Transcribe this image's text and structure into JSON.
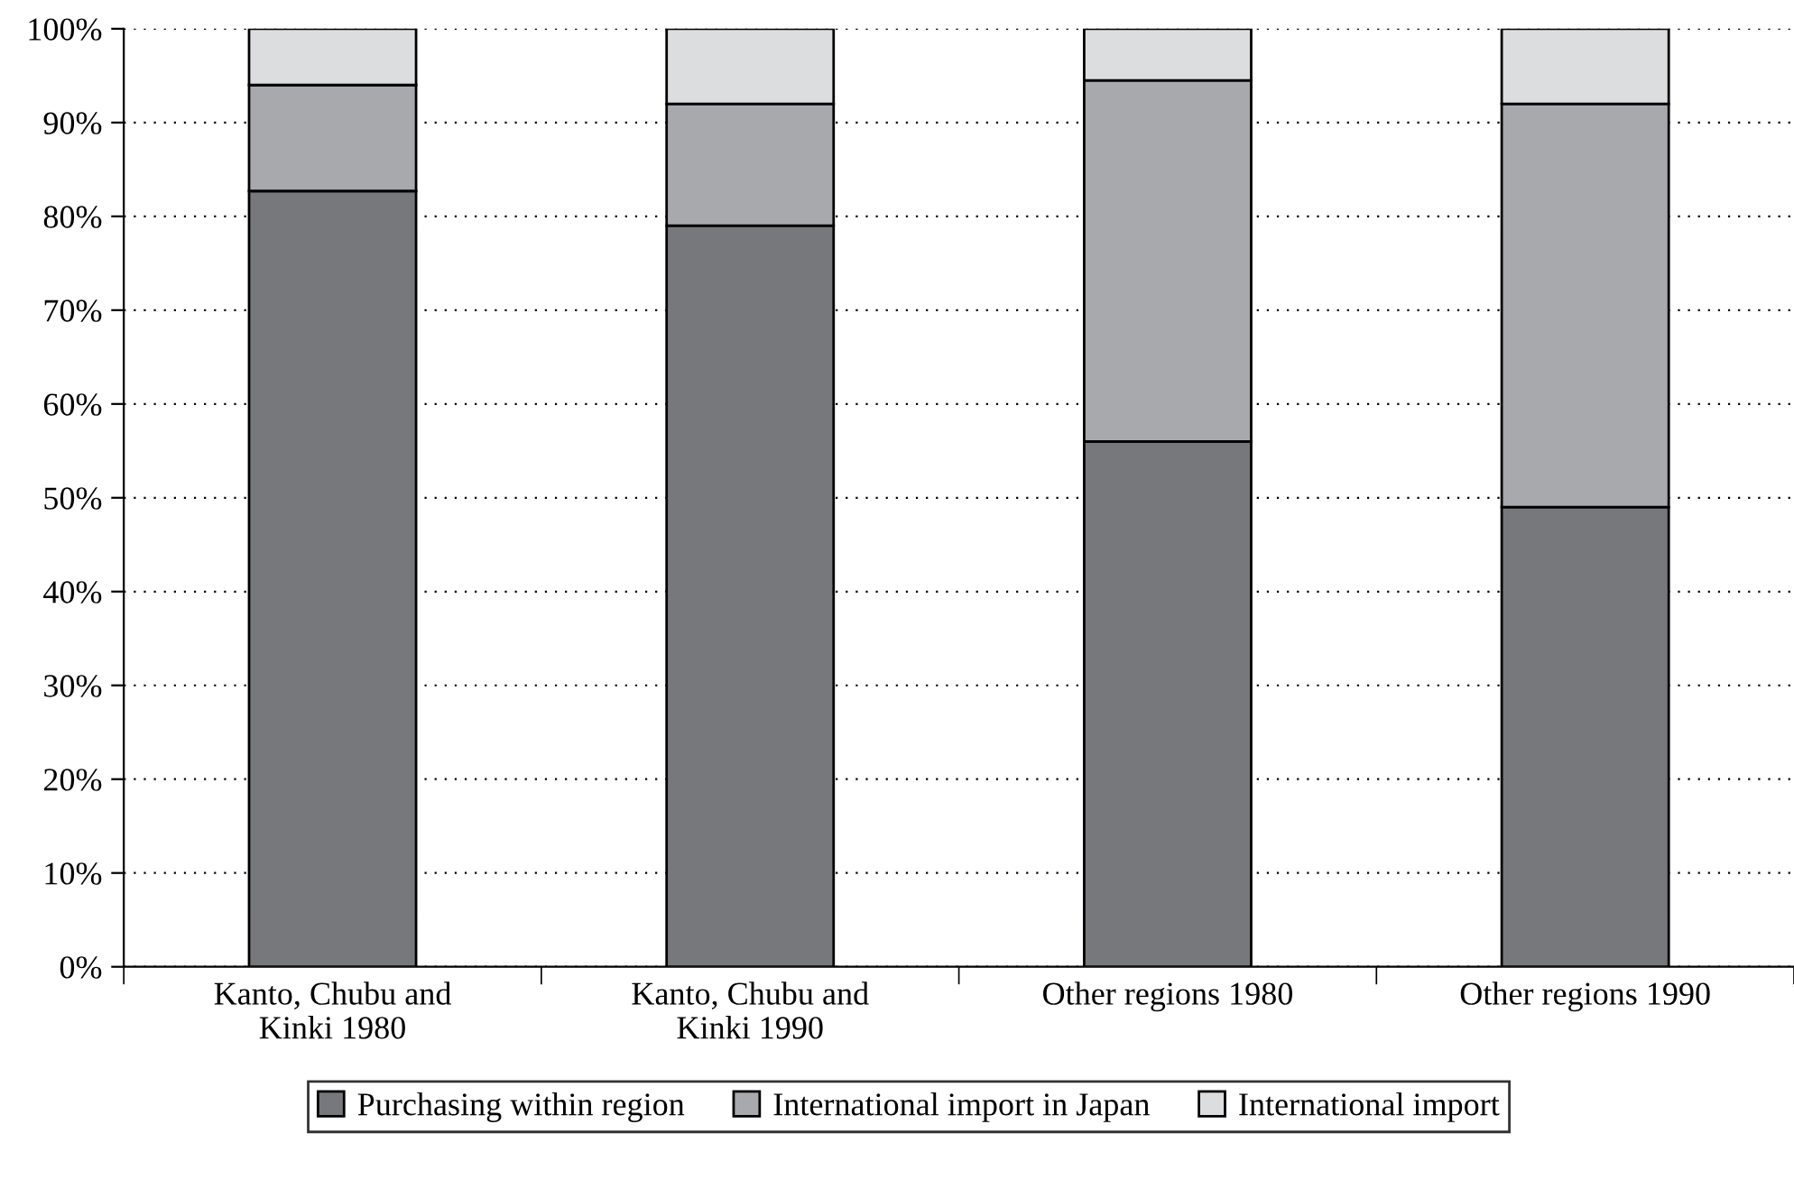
{
  "chart_data": {
    "type": "bar",
    "stacked": true,
    "categories": [
      "Kanto, Chubu and\nKinki 1980",
      "Kanto, Chubu and\nKinki 1990",
      "Other regions 1980",
      "Other regions 1990"
    ],
    "series": [
      {
        "name": "Purchasing within region",
        "color": "#77787c",
        "values": [
          82.7,
          79,
          56,
          49
        ]
      },
      {
        "name": "International import in Japan",
        "color": "#a8a9ad",
        "values": [
          11.3,
          13,
          38.5,
          43
        ]
      },
      {
        "name": "International import",
        "color": "#dcdddf",
        "values": [
          6,
          8,
          5.5,
          8
        ]
      }
    ],
    "ylim": [
      0,
      100
    ],
    "yticks": [
      {
        "value": 0,
        "label": "0%"
      },
      {
        "value": 10,
        "label": "10%"
      },
      {
        "value": 20,
        "label": "20%"
      },
      {
        "value": 30,
        "label": "30%"
      },
      {
        "value": 40,
        "label": "40%"
      },
      {
        "value": 50,
        "label": "50%"
      },
      {
        "value": 60,
        "label": "60%"
      },
      {
        "value": 70,
        "label": "70%"
      },
      {
        "value": 80,
        "label": "80%"
      },
      {
        "value": 90,
        "label": "90%"
      },
      {
        "value": 100,
        "label": "100%"
      }
    ],
    "grid": "y",
    "legend": "bottom"
  }
}
